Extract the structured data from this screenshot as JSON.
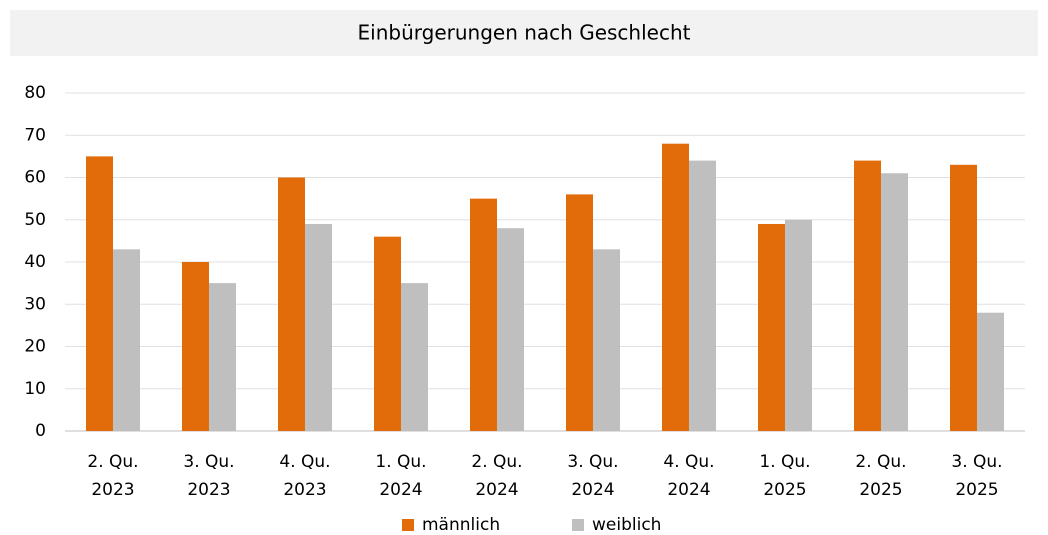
{
  "chart_data": {
    "type": "bar",
    "title": "Einbürgerungen nach Geschlecht",
    "categories": [
      [
        "2. Qu.",
        "2023"
      ],
      [
        "3. Qu.",
        "2023"
      ],
      [
        "4. Qu.",
        "2023"
      ],
      [
        "1. Qu.",
        "2024"
      ],
      [
        "2. Qu.",
        "2024"
      ],
      [
        "3. Qu.",
        "2024"
      ],
      [
        "4. Qu.",
        "2024"
      ],
      [
        "1. Qu.",
        "2025"
      ],
      [
        "2. Qu.",
        "2025"
      ],
      [
        "3. Qu.",
        "2025"
      ]
    ],
    "series": [
      {
        "name": "männlich",
        "color": "#e36c0a",
        "values": [
          65,
          40,
          60,
          46,
          55,
          56,
          68,
          49,
          64,
          63
        ]
      },
      {
        "name": "weiblich",
        "color": "#bfbfbf",
        "values": [
          43,
          35,
          49,
          35,
          48,
          43,
          64,
          50,
          61,
          28
        ]
      }
    ],
    "ylim": [
      0,
      80
    ],
    "yticks": [
      0,
      10,
      20,
      30,
      40,
      50,
      60,
      70,
      80
    ],
    "grid": true,
    "legend": "bottom"
  }
}
